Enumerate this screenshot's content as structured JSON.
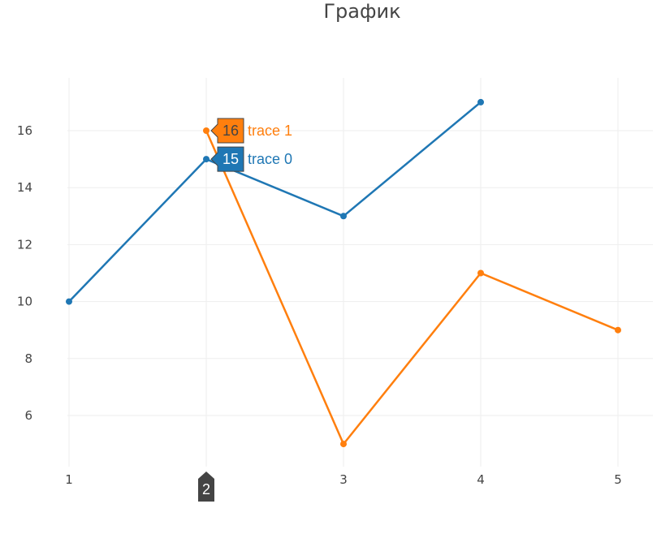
{
  "chart_data": {
    "type": "line",
    "title": "График",
    "xlabel": "",
    "ylabel": "",
    "x_ticks": [
      "1",
      "2",
      "3",
      "4",
      "5"
    ],
    "y_ticks": [
      "6",
      "8",
      "10",
      "12",
      "14",
      "16"
    ],
    "xlim": [
      1,
      5.27
    ],
    "ylim": [
      4.2,
      17.8
    ],
    "grid": true,
    "series": [
      {
        "name": "trace 0",
        "color": "#1f77b4",
        "x": [
          1,
          2,
          3,
          4
        ],
        "y": [
          10,
          15,
          13,
          17
        ]
      },
      {
        "name": "trace 1",
        "color": "#ff7f0e",
        "x": [
          2,
          3,
          4,
          5
        ],
        "y": [
          16,
          5,
          11,
          9
        ]
      }
    ],
    "hover": {
      "x_label": "2",
      "x_value": 2,
      "labels": [
        {
          "series": "trace 1",
          "value_text": "16",
          "name": "trace 1",
          "y": 16
        },
        {
          "series": "trace 0",
          "value_text": "15",
          "name": "trace 0",
          "y": 15
        }
      ],
      "label_color": "#444444"
    }
  }
}
